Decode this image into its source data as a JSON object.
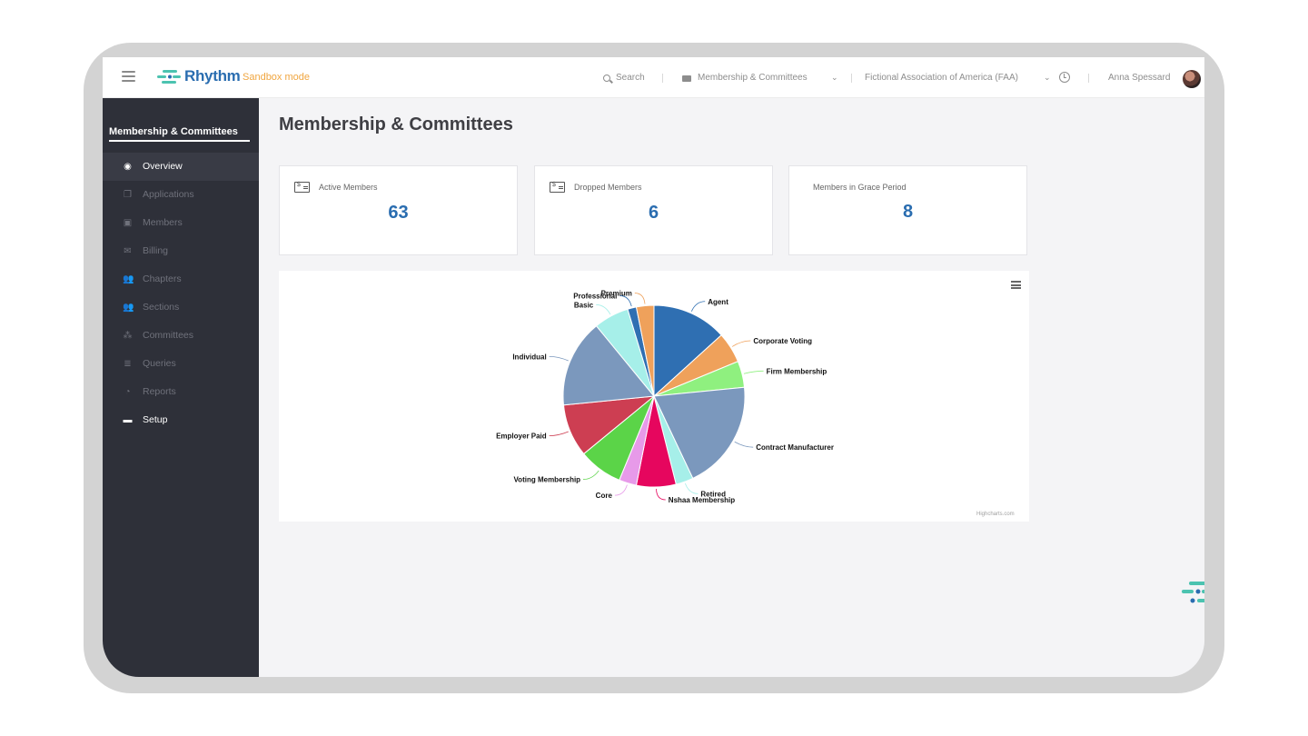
{
  "app": {
    "brand": "Rhythm",
    "mode": "Sandbox mode",
    "brand_color": "#2a6db0",
    "accent_color": "#f0a640"
  },
  "topbar": {
    "search_label": "Search",
    "module_label": "Membership & Committees",
    "org_label": "Fictional Association of America (FAA)",
    "user_name": "Anna Spessard",
    "icons": [
      "menu-icon",
      "search-icon",
      "card-icon",
      "chevron-down-icon",
      "clock-icon",
      "avatar"
    ]
  },
  "sidebar": {
    "title": "Membership & Committees",
    "items": [
      {
        "label": "Overview",
        "icon": "globe-icon",
        "glyph": "◉",
        "active": true
      },
      {
        "label": "Applications",
        "icon": "copy-icon",
        "glyph": "❐",
        "active": false
      },
      {
        "label": "Members",
        "icon": "id-card-icon",
        "glyph": "▣",
        "active": false
      },
      {
        "label": "Billing",
        "icon": "envelope-dollar-icon",
        "glyph": "✉",
        "active": false
      },
      {
        "label": "Chapters",
        "icon": "users-icon",
        "glyph": "👥",
        "active": false
      },
      {
        "label": "Sections",
        "icon": "users-icon",
        "glyph": "👥",
        "active": false
      },
      {
        "label": "Committees",
        "icon": "user-group-icon",
        "glyph": "⁂",
        "active": false
      },
      {
        "label": "Queries",
        "icon": "database-icon",
        "glyph": "≣",
        "active": false
      },
      {
        "label": "Reports",
        "icon": "pie-chart-icon",
        "glyph": "◔",
        "active": false
      },
      {
        "label": "Setup",
        "icon": "briefcase-icon",
        "glyph": "▬",
        "active": false,
        "bright": true
      }
    ]
  },
  "main": {
    "title": "Membership & Committees",
    "stats": [
      {
        "label": "Active Members",
        "value": "63",
        "icon": "dollar-card-icon"
      },
      {
        "label": "Dropped Members",
        "value": "6",
        "icon": "dollar-card-icon"
      },
      {
        "label": "Members in Grace Period",
        "value": "8",
        "icon": ""
      }
    ],
    "credits": "Highcharts.com"
  },
  "chart_data": {
    "type": "pie",
    "title": "",
    "series": [
      {
        "name": "Agent",
        "value": 8.5,
        "color": "#2f6fb2"
      },
      {
        "name": "Corporate Voting",
        "value": 3.5,
        "color": "#efa15b"
      },
      {
        "name": "Firm Membership",
        "value": 3.0,
        "color": "#8ff07f"
      },
      {
        "name": "Contract Manufacturer",
        "value": 12.5,
        "color": "#7b98bd"
      },
      {
        "name": "Retired",
        "value": 2.0,
        "color": "#a6efe9"
      },
      {
        "name": "Nshaa Membership",
        "value": 4.5,
        "color": "#e6065e"
      },
      {
        "name": "Core",
        "value": 2.0,
        "color": "#e79ae9"
      },
      {
        "name": "Voting Membership",
        "value": 5.0,
        "color": "#5bd448"
      },
      {
        "name": "Employer Paid",
        "value": 6.0,
        "color": "#cd3e52"
      },
      {
        "name": "Individual",
        "value": 10.0,
        "color": "#7b98bd"
      },
      {
        "name": "Basic",
        "value": 4.0,
        "color": "#a6efe9"
      },
      {
        "name": "Professional",
        "value": 1.0,
        "color": "#2f6fb2"
      },
      {
        "name": "Premium",
        "value": 2.0,
        "color": "#efa15b"
      }
    ]
  }
}
